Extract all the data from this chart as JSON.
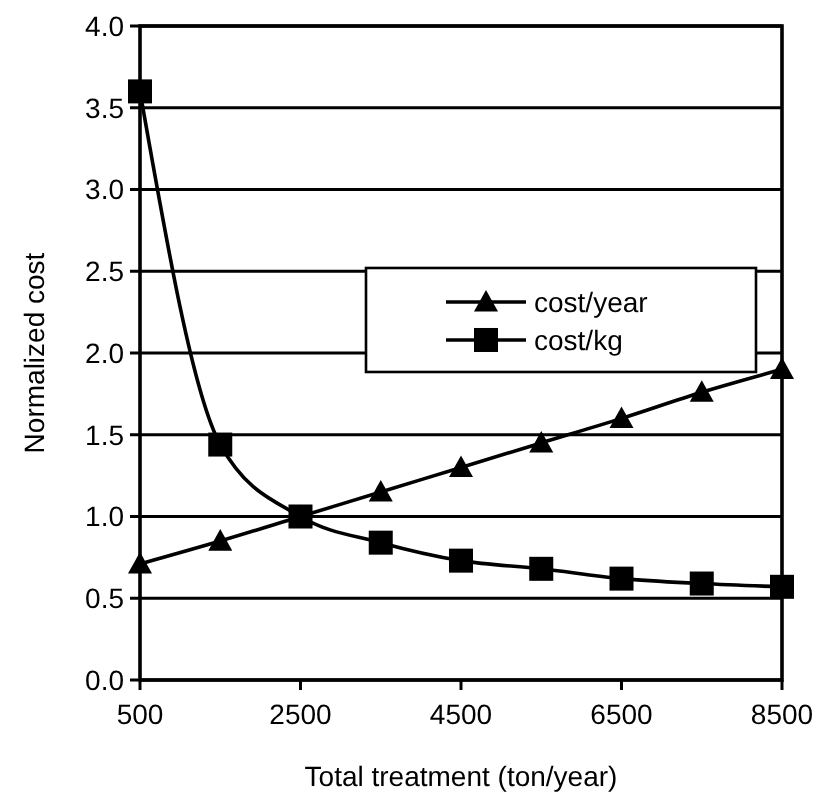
{
  "chart_data": {
    "type": "line",
    "xlabel": "Total treatment (ton/year)",
    "ylabel": "Normalized cost",
    "x": [
      500,
      1500,
      2500,
      3500,
      4500,
      5500,
      6500,
      7500,
      8500
    ],
    "series": [
      {
        "name": "cost/year",
        "color": "#000000",
        "marker": "triangle",
        "values": [
          0.71,
          0.85,
          1.0,
          1.15,
          1.3,
          1.45,
          1.6,
          1.76,
          1.9
        ]
      },
      {
        "name": "cost/kg",
        "color": "#000000",
        "marker": "square",
        "values": [
          3.6,
          1.44,
          1.0,
          0.84,
          0.73,
          0.68,
          0.62,
          0.59,
          0.57
        ]
      }
    ],
    "xlim": [
      500,
      8500
    ],
    "xticks": [
      500,
      2500,
      4500,
      6500,
      8500
    ],
    "ylim": [
      0,
      4
    ],
    "yticks": [
      {
        "value": 0,
        "label": "0.0"
      },
      {
        "value": 0.5,
        "label": "0.5"
      },
      {
        "value": 1,
        "label": "1.0"
      },
      {
        "value": 1.5,
        "label": "1.5"
      },
      {
        "value": 2,
        "label": "2.0"
      },
      {
        "value": 2.5,
        "label": "2.5"
      },
      {
        "value": 3,
        "label": "3.0"
      },
      {
        "value": 3.5,
        "label": "3.5"
      },
      {
        "value": 4,
        "label": "4.0"
      }
    ],
    "grid": "y",
    "legend": "right",
    "line_style": "solid"
  }
}
